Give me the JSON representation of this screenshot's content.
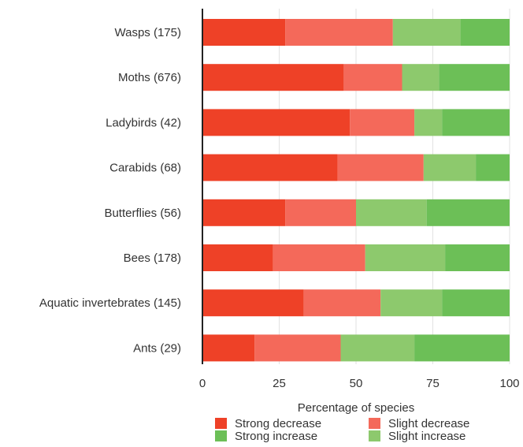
{
  "chart_data": {
    "type": "bar",
    "orientation": "horizontal",
    "stacked": true,
    "categories": [
      "Wasps (175)",
      "Moths (676)",
      "Ladybirds (42)",
      "Carabids (68)",
      "Butterflies (56)",
      "Bees (178)",
      "Aquatic invertebrates (145)",
      "Ants (29)"
    ],
    "series": [
      {
        "name": "Strong decrease",
        "color": "#ee4127",
        "values": [
          27,
          46,
          48,
          44,
          27,
          23,
          33,
          17
        ]
      },
      {
        "name": "Slight decrease",
        "color": "#f4695a",
        "values": [
          35,
          19,
          21,
          28,
          23,
          30,
          25,
          28
        ]
      },
      {
        "name": "Slight increase",
        "color": "#8dc96d",
        "values": [
          22,
          12,
          9,
          17,
          23,
          26,
          20,
          24
        ]
      },
      {
        "name": "Strong increase",
        "color": "#6cbf57",
        "values": [
          16,
          23,
          22,
          11,
          27,
          21,
          22,
          31
        ]
      }
    ],
    "xlabel": "Percentage of species",
    "xlim": [
      0,
      100
    ],
    "xticks": [
      0,
      25,
      50,
      75,
      100
    ],
    "grid": true,
    "legend_position": "bottom",
    "legend_order": [
      "Strong decrease",
      "Slight decrease",
      "Strong increase",
      "Slight increase"
    ]
  }
}
